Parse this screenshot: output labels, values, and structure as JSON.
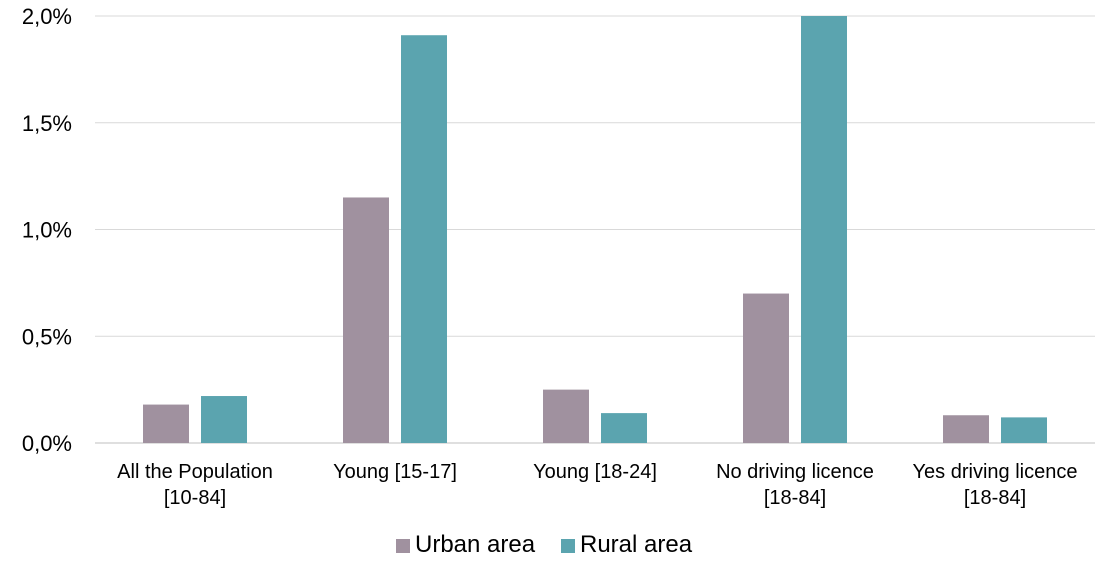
{
  "chart_data": {
    "type": "bar",
    "title": "",
    "xlabel": "",
    "ylabel": "",
    "ylim": [
      0,
      2.0
    ],
    "yticks": [
      0,
      0.5,
      1.0,
      1.5,
      2.0
    ],
    "ytick_labels": [
      "0,0%",
      "0,5%",
      "1,0%",
      "1,5%",
      "2,0%"
    ],
    "grid": "horizontal",
    "legend_position": "bottom",
    "categories": [
      [
        "All the Population",
        "[10-84]"
      ],
      [
        "Young [15-17]"
      ],
      [
        "Young [18-24]"
      ],
      [
        "No driving licence",
        "[18-84]"
      ],
      [
        "Yes driving licence",
        "[18-84]"
      ]
    ],
    "series": [
      {
        "name": "Urban area",
        "color": "#A0919F",
        "values": [
          0.18,
          1.15,
          0.25,
          0.7,
          0.13
        ]
      },
      {
        "name": "Rural area",
        "color": "#5BA4AF",
        "values": [
          0.22,
          1.91,
          0.14,
          2.0,
          0.12
        ]
      }
    ]
  }
}
